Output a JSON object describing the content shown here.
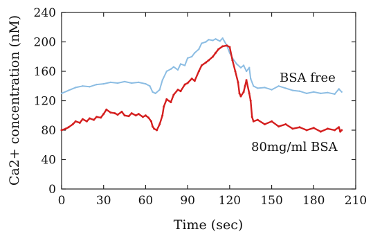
{
  "chart_data": {
    "type": "line",
    "title": "",
    "xlabel": "Time (sec)",
    "ylabel": "Ca2+ concentration (nM)",
    "xlim": [
      0,
      210
    ],
    "ylim": [
      0,
      240
    ],
    "x_ticks": [
      "0",
      "30",
      "60",
      "90",
      "120",
      "150",
      "180",
      "210"
    ],
    "y_ticks": [
      "0",
      "40",
      "80",
      "120",
      "160",
      "200",
      "240"
    ],
    "grid": false,
    "legend": "none",
    "series": [
      {
        "name": "BSA free",
        "color": "#8cbde3",
        "x": [
          0,
          5,
          10,
          15,
          20,
          25,
          30,
          35,
          40,
          45,
          50,
          55,
          60,
          63,
          65,
          67,
          70,
          72,
          75,
          78,
          80,
          83,
          85,
          88,
          90,
          93,
          95,
          98,
          100,
          103,
          105,
          108,
          110,
          113,
          115,
          118,
          120,
          122,
          125,
          128,
          130,
          132,
          134,
          135,
          137,
          140,
          145,
          150,
          155,
          160,
          165,
          170,
          175,
          180,
          185,
          190,
          195,
          198,
          200
        ],
        "y": [
          130,
          134,
          138,
          140,
          139,
          142,
          143,
          145,
          144,
          146,
          144,
          145,
          143,
          140,
          132,
          130,
          135,
          148,
          160,
          163,
          166,
          162,
          170,
          168,
          178,
          180,
          185,
          190,
          198,
          200,
          203,
          202,
          204,
          201,
          205,
          195,
          185,
          178,
          170,
          165,
          168,
          160,
          165,
          150,
          140,
          137,
          138,
          135,
          140,
          137,
          134,
          133,
          130,
          132,
          130,
          131,
          129,
          136,
          132
        ]
      },
      {
        "name": "80mg/ml BSA",
        "color": "#d41e1e",
        "x": [
          0,
          3,
          5,
          8,
          10,
          13,
          15,
          18,
          20,
          23,
          25,
          28,
          30,
          32,
          35,
          38,
          40,
          43,
          45,
          48,
          50,
          53,
          55,
          58,
          60,
          62,
          64,
          65,
          66,
          68,
          70,
          72,
          73,
          75,
          78,
          80,
          83,
          85,
          88,
          90,
          93,
          95,
          98,
          100,
          103,
          105,
          108,
          110,
          112,
          115,
          118,
          120,
          122,
          124,
          126,
          127,
          128,
          130,
          131,
          132,
          134,
          135,
          136,
          137,
          140,
          145,
          150,
          155,
          160,
          165,
          170,
          175,
          180,
          185,
          190,
          195,
          198,
          199,
          200
        ],
        "y": [
          80,
          82,
          84,
          88,
          92,
          90,
          95,
          92,
          96,
          94,
          98,
          97,
          102,
          108,
          104,
          103,
          101,
          105,
          100,
          99,
          103,
          100,
          102,
          98,
          100,
          97,
          92,
          85,
          82,
          80,
          88,
          100,
          112,
          122,
          118,
          128,
          135,
          133,
          142,
          144,
          150,
          147,
          160,
          168,
          172,
          175,
          180,
          185,
          190,
          194,
          195,
          193,
          175,
          160,
          145,
          130,
          126,
          132,
          140,
          148,
          130,
          120,
          98,
          92,
          94,
          88,
          92,
          85,
          88,
          82,
          84,
          80,
          83,
          78,
          82,
          80,
          84,
          78,
          80
        ]
      }
    ]
  }
}
